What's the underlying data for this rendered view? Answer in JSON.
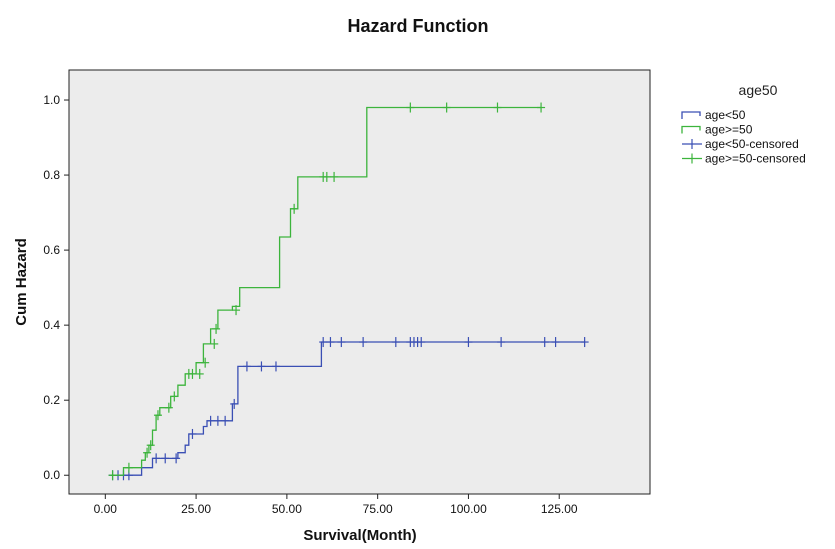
{
  "chart_data": {
    "type": "line",
    "title": "Hazard Function",
    "xlabel": "Survival(Month)",
    "ylabel": "Cum Hazard",
    "xlim": [
      -10,
      150
    ],
    "ylim": [
      -0.05,
      1.08
    ],
    "xticks": [
      0,
      25,
      50,
      75,
      100,
      125
    ],
    "xtick_labels": [
      "0.00",
      "25.00",
      "50.00",
      "75.00",
      "100.00",
      "125.00"
    ],
    "yticks": [
      0,
      0.2,
      0.4,
      0.6,
      0.8,
      1.0
    ],
    "ytick_labels": [
      "0.0",
      "0.2",
      "0.4",
      "0.6",
      "0.8",
      "1.0"
    ],
    "grid": false,
    "legend": {
      "title": "age50",
      "position": "top-right",
      "entries": [
        "age<50",
        "age>=50",
        "age<50-censored",
        "age>=50-censored"
      ]
    },
    "colors": {
      "age_lt_50": "#3a4fb4",
      "age_ge_50": "#3cb43c",
      "plot_background": "#ececec"
    },
    "series": [
      {
        "name": "age<50",
        "step": true,
        "points": [
          [
            1.5,
            0
          ],
          [
            10,
            0
          ],
          [
            10,
            0.02
          ],
          [
            13,
            0.02
          ],
          [
            13,
            0.045
          ],
          [
            20,
            0.045
          ],
          [
            20,
            0.06
          ],
          [
            22,
            0.06
          ],
          [
            22,
            0.08
          ],
          [
            23,
            0.08
          ],
          [
            23,
            0.11
          ],
          [
            27,
            0.11
          ],
          [
            27,
            0.13
          ],
          [
            28,
            0.13
          ],
          [
            28,
            0.145
          ],
          [
            35,
            0.145
          ],
          [
            35,
            0.19
          ],
          [
            36.5,
            0.19
          ],
          [
            36.5,
            0.29
          ],
          [
            59.5,
            0.29
          ],
          [
            59.5,
            0.355
          ],
          [
            132,
            0.355
          ]
        ],
        "censored": [
          [
            2,
            0
          ],
          [
            3.5,
            0
          ],
          [
            5,
            0
          ],
          [
            6.5,
            0
          ],
          [
            14,
            0.045
          ],
          [
            16.5,
            0.045
          ],
          [
            19.5,
            0.045
          ],
          [
            24,
            0.11
          ],
          [
            29,
            0.145
          ],
          [
            31,
            0.145
          ],
          [
            33,
            0.145
          ],
          [
            35.5,
            0.19
          ],
          [
            39,
            0.29
          ],
          [
            43,
            0.29
          ],
          [
            47,
            0.29
          ],
          [
            60,
            0.355
          ],
          [
            62,
            0.355
          ],
          [
            65,
            0.355
          ],
          [
            71,
            0.355
          ],
          [
            80,
            0.355
          ],
          [
            84,
            0.355
          ],
          [
            85,
            0.355
          ],
          [
            86,
            0.355
          ],
          [
            87,
            0.355
          ],
          [
            100,
            0.355
          ],
          [
            109,
            0.355
          ],
          [
            121,
            0.355
          ],
          [
            124,
            0.355
          ],
          [
            132,
            0.355
          ]
        ]
      },
      {
        "name": "age>=50",
        "step": true,
        "points": [
          [
            1.5,
            0
          ],
          [
            5,
            0
          ],
          [
            5,
            0.02
          ],
          [
            10,
            0.02
          ],
          [
            10,
            0.04
          ],
          [
            11,
            0.04
          ],
          [
            11,
            0.06
          ],
          [
            12,
            0.06
          ],
          [
            12,
            0.08
          ],
          [
            13,
            0.08
          ],
          [
            13,
            0.12
          ],
          [
            14,
            0.12
          ],
          [
            14,
            0.16
          ],
          [
            15,
            0.16
          ],
          [
            15,
            0.18
          ],
          [
            18,
            0.18
          ],
          [
            18,
            0.21
          ],
          [
            20,
            0.21
          ],
          [
            20,
            0.24
          ],
          [
            22,
            0.24
          ],
          [
            22,
            0.27
          ],
          [
            25,
            0.27
          ],
          [
            25,
            0.3
          ],
          [
            27,
            0.3
          ],
          [
            27,
            0.35
          ],
          [
            29,
            0.35
          ],
          [
            29,
            0.39
          ],
          [
            31,
            0.39
          ],
          [
            31,
            0.44
          ],
          [
            35,
            0.44
          ],
          [
            35,
            0.45
          ],
          [
            37,
            0.45
          ],
          [
            37,
            0.5
          ],
          [
            48,
            0.5
          ],
          [
            48,
            0.635
          ],
          [
            51,
            0.635
          ],
          [
            51,
            0.71
          ],
          [
            53,
            0.71
          ],
          [
            53,
            0.795
          ],
          [
            72,
            0.795
          ],
          [
            72,
            0.98
          ],
          [
            120,
            0.98
          ]
        ],
        "censored": [
          [
            2,
            0
          ],
          [
            6.5,
            0.02
          ],
          [
            11.5,
            0.06
          ],
          [
            12.5,
            0.08
          ],
          [
            14.5,
            0.16
          ],
          [
            17.5,
            0.18
          ],
          [
            19,
            0.21
          ],
          [
            23,
            0.27
          ],
          [
            24,
            0.27
          ],
          [
            26,
            0.27
          ],
          [
            27.5,
            0.3
          ],
          [
            30,
            0.35
          ],
          [
            30.5,
            0.39
          ],
          [
            36,
            0.44
          ],
          [
            52,
            0.71
          ],
          [
            60,
            0.795
          ],
          [
            61,
            0.795
          ],
          [
            63,
            0.795
          ],
          [
            84,
            0.98
          ],
          [
            94,
            0.98
          ],
          [
            108,
            0.98
          ],
          [
            120,
            0.98
          ]
        ]
      }
    ]
  }
}
